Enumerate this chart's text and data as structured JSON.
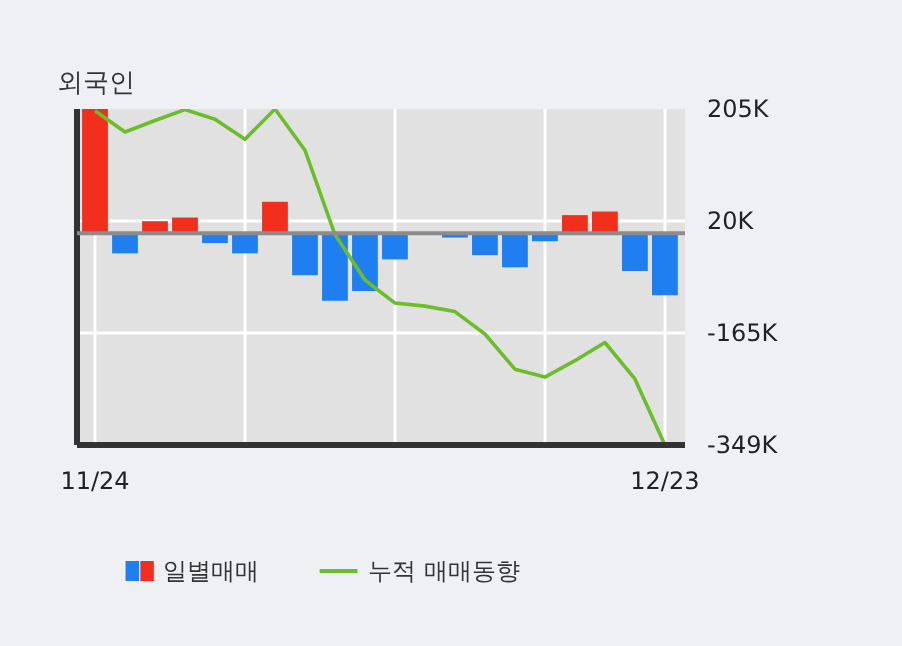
{
  "chart_data": {
    "type": "bar",
    "title": "외국인",
    "categories": [
      "11/24",
      null,
      null,
      null,
      null,
      null,
      null,
      null,
      null,
      null,
      null,
      null,
      null,
      null,
      null,
      null,
      null,
      null,
      null,
      "12/23"
    ],
    "series": [
      {
        "name": "일별매매",
        "colors": [
          "#f22e1c",
          "#1f7ff0",
          "#f22e1c",
          "#f22e1c",
          "#1f7ff0",
          "#1f7ff0",
          "#f22e1c",
          "#1f7ff0",
          "#1f7ff0",
          "#1f7ff0",
          "#1f7ff0",
          "#1f7ff0",
          "#1f7ff0",
          "#1f7ff0",
          "#1f7ff0",
          "#1f7ff0",
          "#f22e1c",
          "#f22e1c",
          "#1f7ff0",
          "#1f7ff0"
        ],
        "values": [
          205,
          -33,
          20,
          26,
          -16,
          -33,
          52,
          -69,
          -111,
          -95,
          -43,
          0,
          -7,
          -36,
          -56,
          -13,
          30,
          36,
          -62,
          -102
        ]
      },
      {
        "name": "누적 매매동향",
        "type": "line",
        "color": "#6cbd2b",
        "values": [
          202,
          167,
          186,
          204,
          188,
          155,
          205,
          137,
          -2,
          -77,
          -115,
          -120,
          -129,
          -166,
          -224,
          -237,
          -210,
          -180,
          -240,
          -349
        ]
      }
    ],
    "ylim": [
      -349,
      205
    ],
    "yticks": [
      {
        "value": 205,
        "label": "205K"
      },
      {
        "value": 20,
        "label": "20K"
      },
      {
        "value": -165,
        "label": "-165K"
      },
      {
        "value": -349,
        "label": "-349K"
      }
    ],
    "ref_lines": [
      {
        "axis": "y",
        "value": 0,
        "color": "#8c8c8c"
      }
    ],
    "grid": true,
    "legend": "bottom"
  }
}
